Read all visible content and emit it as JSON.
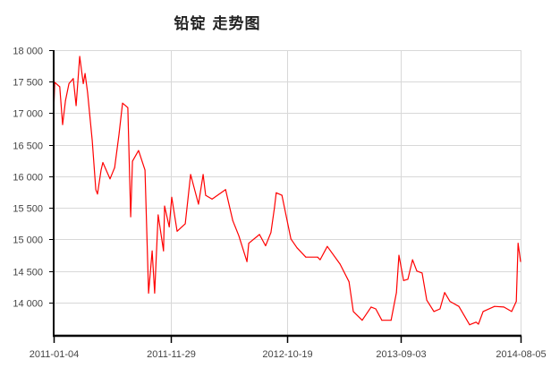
{
  "chart_data": {
    "type": "line",
    "title": "铅锭  走势图",
    "xlabel": "",
    "ylabel": "",
    "ylim": [
      13475,
      18000
    ],
    "xlim": [
      "2011-01-04",
      "2014-08-05"
    ],
    "grid": true,
    "legend": "none",
    "line_color": "#ff0000",
    "y_ticks": [
      {
        "value": 14000,
        "label": "14 000"
      },
      {
        "value": 14500,
        "label": "14 500"
      },
      {
        "value": 15000,
        "label": "15 000"
      },
      {
        "value": 15500,
        "label": "15 500"
      },
      {
        "value": 16000,
        "label": "16 000"
      },
      {
        "value": 16500,
        "label": "16 500"
      },
      {
        "value": 17000,
        "label": "17 000"
      },
      {
        "value": 17500,
        "label": "17 500"
      },
      {
        "value": 18000,
        "label": "18 000"
      }
    ],
    "x_ticks": [
      "2011-01-04",
      "2011-11-29",
      "2012-10-19",
      "2013-09-03",
      "2014-08-05"
    ],
    "series": [
      {
        "points": [
          [
            "2011-01-04",
            17000
          ],
          [
            "2011-01-07",
            17490
          ],
          [
            "2011-01-21",
            17420
          ],
          [
            "2011-01-29",
            16820
          ],
          [
            "2011-02-06",
            17200
          ],
          [
            "2011-02-16",
            17470
          ],
          [
            "2011-02-28",
            17550
          ],
          [
            "2011-03-08",
            17120
          ],
          [
            "2011-03-18",
            17900
          ],
          [
            "2011-03-28",
            17470
          ],
          [
            "2011-04-02",
            17630
          ],
          [
            "2011-04-09",
            17330
          ],
          [
            "2011-04-22",
            16570
          ],
          [
            "2011-05-02",
            15790
          ],
          [
            "2011-05-07",
            15720
          ],
          [
            "2011-05-17",
            16100
          ],
          [
            "2011-05-22",
            16220
          ],
          [
            "2011-06-11",
            15960
          ],
          [
            "2011-06-24",
            16140
          ],
          [
            "2011-07-06",
            16660
          ],
          [
            "2011-07-16",
            17160
          ],
          [
            "2011-07-31",
            17090
          ],
          [
            "2011-08-08",
            15360
          ],
          [
            "2011-08-13",
            16240
          ],
          [
            "2011-08-30",
            16410
          ],
          [
            "2011-09-17",
            16100
          ],
          [
            "2011-09-27",
            14150
          ],
          [
            "2011-10-07",
            14820
          ],
          [
            "2011-10-14",
            14150
          ],
          [
            "2011-10-24",
            15390
          ],
          [
            "2011-11-08",
            14820
          ],
          [
            "2011-11-11",
            15530
          ],
          [
            "2011-11-24",
            15200
          ],
          [
            "2011-12-01",
            15670
          ],
          [
            "2011-12-16",
            15130
          ],
          [
            "2012-01-08",
            15250
          ],
          [
            "2012-01-23",
            16030
          ],
          [
            "2012-02-14",
            15560
          ],
          [
            "2012-02-27",
            16030
          ],
          [
            "2012-03-05",
            15700
          ],
          [
            "2012-03-23",
            15640
          ],
          [
            "2012-04-30",
            15790
          ],
          [
            "2012-05-20",
            15300
          ],
          [
            "2012-06-06",
            15060
          ],
          [
            "2012-06-29",
            14650
          ],
          [
            "2012-07-04",
            14940
          ],
          [
            "2012-08-03",
            15080
          ],
          [
            "2012-08-20",
            14900
          ],
          [
            "2012-09-04",
            15110
          ],
          [
            "2012-09-14",
            15500
          ],
          [
            "2012-09-19",
            15740
          ],
          [
            "2012-10-05",
            15700
          ],
          [
            "2012-10-30",
            15010
          ],
          [
            "2012-11-16",
            14870
          ],
          [
            "2012-12-11",
            14720
          ],
          [
            "2013-01-13",
            14720
          ],
          [
            "2013-01-20",
            14680
          ],
          [
            "2013-02-09",
            14890
          ],
          [
            "2013-03-17",
            14610
          ],
          [
            "2013-04-11",
            14330
          ],
          [
            "2013-04-23",
            13860
          ],
          [
            "2013-05-18",
            13720
          ],
          [
            "2013-06-12",
            13930
          ],
          [
            "2013-06-25",
            13900
          ],
          [
            "2013-07-12",
            13720
          ],
          [
            "2013-08-07",
            13720
          ],
          [
            "2013-08-22",
            14160
          ],
          [
            "2013-08-29",
            14750
          ],
          [
            "2013-09-11",
            14350
          ],
          [
            "2013-09-23",
            14370
          ],
          [
            "2013-10-06",
            14680
          ],
          [
            "2013-10-18",
            14500
          ],
          [
            "2013-11-02",
            14470
          ],
          [
            "2013-11-15",
            14040
          ],
          [
            "2013-12-05",
            13860
          ],
          [
            "2013-12-22",
            13900
          ],
          [
            "2014-01-04",
            14160
          ],
          [
            "2014-01-19",
            14020
          ],
          [
            "2014-02-13",
            13940
          ],
          [
            "2014-03-15",
            13650
          ],
          [
            "2014-04-02",
            13690
          ],
          [
            "2014-04-09",
            13660
          ],
          [
            "2014-04-22",
            13860
          ],
          [
            "2014-05-24",
            13940
          ],
          [
            "2014-06-19",
            13930
          ],
          [
            "2014-07-11",
            13860
          ],
          [
            "2014-07-24",
            14020
          ],
          [
            "2014-07-29",
            14940
          ],
          [
            "2014-08-05",
            14650
          ]
        ]
      }
    ]
  }
}
